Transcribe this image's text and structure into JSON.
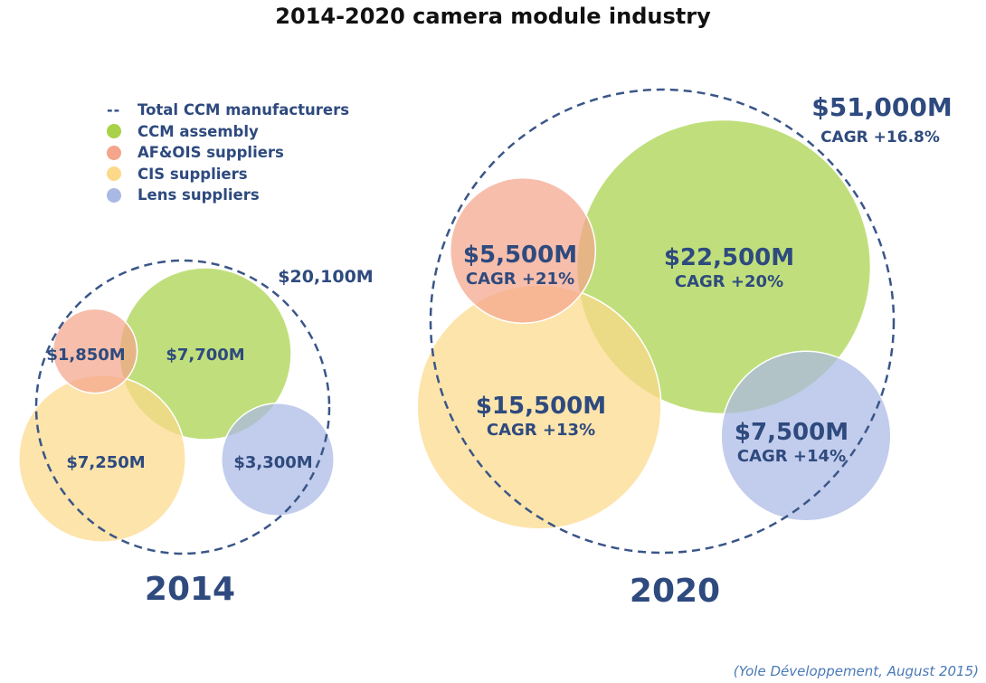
{
  "chart_data": {
    "type": "bubble",
    "title": "2014-2020 camera module industry",
    "legend": {
      "placement": "top-left",
      "entries": [
        {
          "label": "Total CCM manufacturers",
          "marker": "dashed-line",
          "color": "#2e4a7e"
        },
        {
          "label": "CCM assembly",
          "color": "#a8d24a"
        },
        {
          "label": "AF&OIS suppliers",
          "color": "#f4a58a"
        },
        {
          "label": "CIS suppliers",
          "color": "#fcd98a"
        },
        {
          "label": "Lens suppliers",
          "color": "#aab8e4"
        }
      ]
    },
    "groups": [
      {
        "year": "2014",
        "total": {
          "value": 20100,
          "label": "$20,100M"
        },
        "bubbles": [
          {
            "series": "CCM assembly",
            "value": 7700,
            "label": "$7,700M"
          },
          {
            "series": "AF&OIS suppliers",
            "value": 1850,
            "label": "$1,850M"
          },
          {
            "series": "CIS suppliers",
            "value": 7250,
            "label": "$7,250M"
          },
          {
            "series": "Lens suppliers",
            "value": 3300,
            "label": "$3,300M"
          }
        ]
      },
      {
        "year": "2020",
        "total": {
          "value": 51000,
          "label": "$51,000M",
          "cagr": "CAGR +16.8%"
        },
        "bubbles": [
          {
            "series": "CCM assembly",
            "value": 22500,
            "label": "$22,500M",
            "cagr": "CAGR +20%"
          },
          {
            "series": "AF&OIS suppliers",
            "value": 5500,
            "label": "$5,500M",
            "cagr": "CAGR +21%"
          },
          {
            "series": "CIS suppliers",
            "value": 15500,
            "label": "$15,500M",
            "cagr": "CAGR +13%"
          },
          {
            "series": "Lens suppliers",
            "value": 7500,
            "label": "$7,500M",
            "cagr": "CAGR +14%"
          }
        ]
      }
    ],
    "source": "(Yole Développement, August 2015)"
  }
}
